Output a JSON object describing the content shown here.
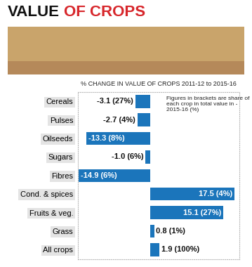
{
  "chart_data": {
    "type": "bar",
    "orientation": "horizontal",
    "title": "VALUE OF CROPS",
    "subtitle": "% CHANGE IN VALUE OF CROPS 2011-12 to 2015-16",
    "annotation": "Figures in brackets are share of each crop in total value in - 2015-16 (%)",
    "categories": [
      "Cereals",
      "Pulses",
      "Oilseeds",
      "Sugars",
      "Fibres",
      "Cond. & spices",
      "Fruits & veg.",
      "Grass",
      "All crops"
    ],
    "values": [
      -3.1,
      -2.7,
      -13.3,
      -1.0,
      -14.9,
      17.5,
      15.1,
      0.8,
      1.9
    ],
    "value_labels": [
      "-3.1 (27%)",
      "-2.7 (4%)",
      "-13.3 (8%)",
      "-1.0 (6%)",
      "-14.9 (6%)",
      "17.5 (4%)",
      "15.1 (27%)",
      "0.8 (1%)",
      "1.9 (100%)"
    ],
    "color": "#1b75bb",
    "xlim": [
      -15,
      18.5
    ],
    "xticks": [],
    "tick_labels": "y",
    "data_labels": true,
    "grid": false
  }
}
